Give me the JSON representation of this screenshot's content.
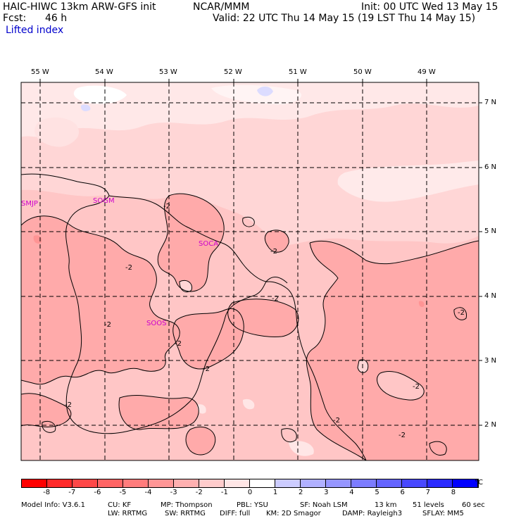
{
  "header": {
    "model": "HAIC-HIWC 13km ARW-GFS init",
    "org": "NCAR/MMM",
    "init": "Init: 00 UTC Wed 13 May 15",
    "fcst_label": "Fcst:",
    "fcst_value": "46 h",
    "valid": "Valid: 22 UTC Thu 14 May 15 (19 LST Thu 14 May 15)",
    "field": "Lifted index"
  },
  "map": {
    "lon_labels": [
      "55 W",
      "54 W",
      "53 W",
      "52 W",
      "51 W",
      "50 W",
      "49 W"
    ],
    "lat_labels": [
      "7 N",
      "6 N",
      "5 N",
      "4 N",
      "3 N",
      "2 N"
    ],
    "stations": [
      "SMJP",
      "SOGM",
      "SOCA",
      "SOOS"
    ],
    "contour_label": "-2",
    "colors": {
      "background": "#ffd6d6",
      "band_minus1": "#ffc4c4",
      "band_minus2": "#ffa8a8",
      "band_minus3": "#ff9090",
      "band_zero": "#fff0f0",
      "band_plus1": "#dcdcff"
    }
  },
  "colorbar": {
    "unit": "°C",
    "ticks": [
      "-8",
      "-7",
      "-6",
      "-5",
      "-4",
      "-3",
      "-2",
      "-1",
      "0",
      "1",
      "2",
      "3",
      "4",
      "5",
      "6",
      "7",
      "8"
    ],
    "colors": [
      "#ff0000",
      "#ff2a2a",
      "#ff4848",
      "#ff6464",
      "#ff7c7c",
      "#ff9696",
      "#ffb0b0",
      "#ffcccc",
      "#ffe6e6",
      "#ffffff",
      "#ccccff",
      "#b0b0ff",
      "#9696ff",
      "#7c7cff",
      "#6464ff",
      "#4848ff",
      "#2a2aff",
      "#0000ff"
    ]
  },
  "footer": {
    "line1": [
      "Model Info: V3.6.1",
      "CU: KF",
      "MP: Thompson",
      "PBL: YSU",
      "SF: Noah LSM",
      "13 km",
      "51 levels",
      "60 sec"
    ],
    "line2": [
      "LW: RRTMG",
      "SW: RRTMG",
      "DIFF: full",
      "KM: 2D Smagor",
      "DAMP: Rayleigh3",
      "SFLAY: MM5"
    ]
  }
}
